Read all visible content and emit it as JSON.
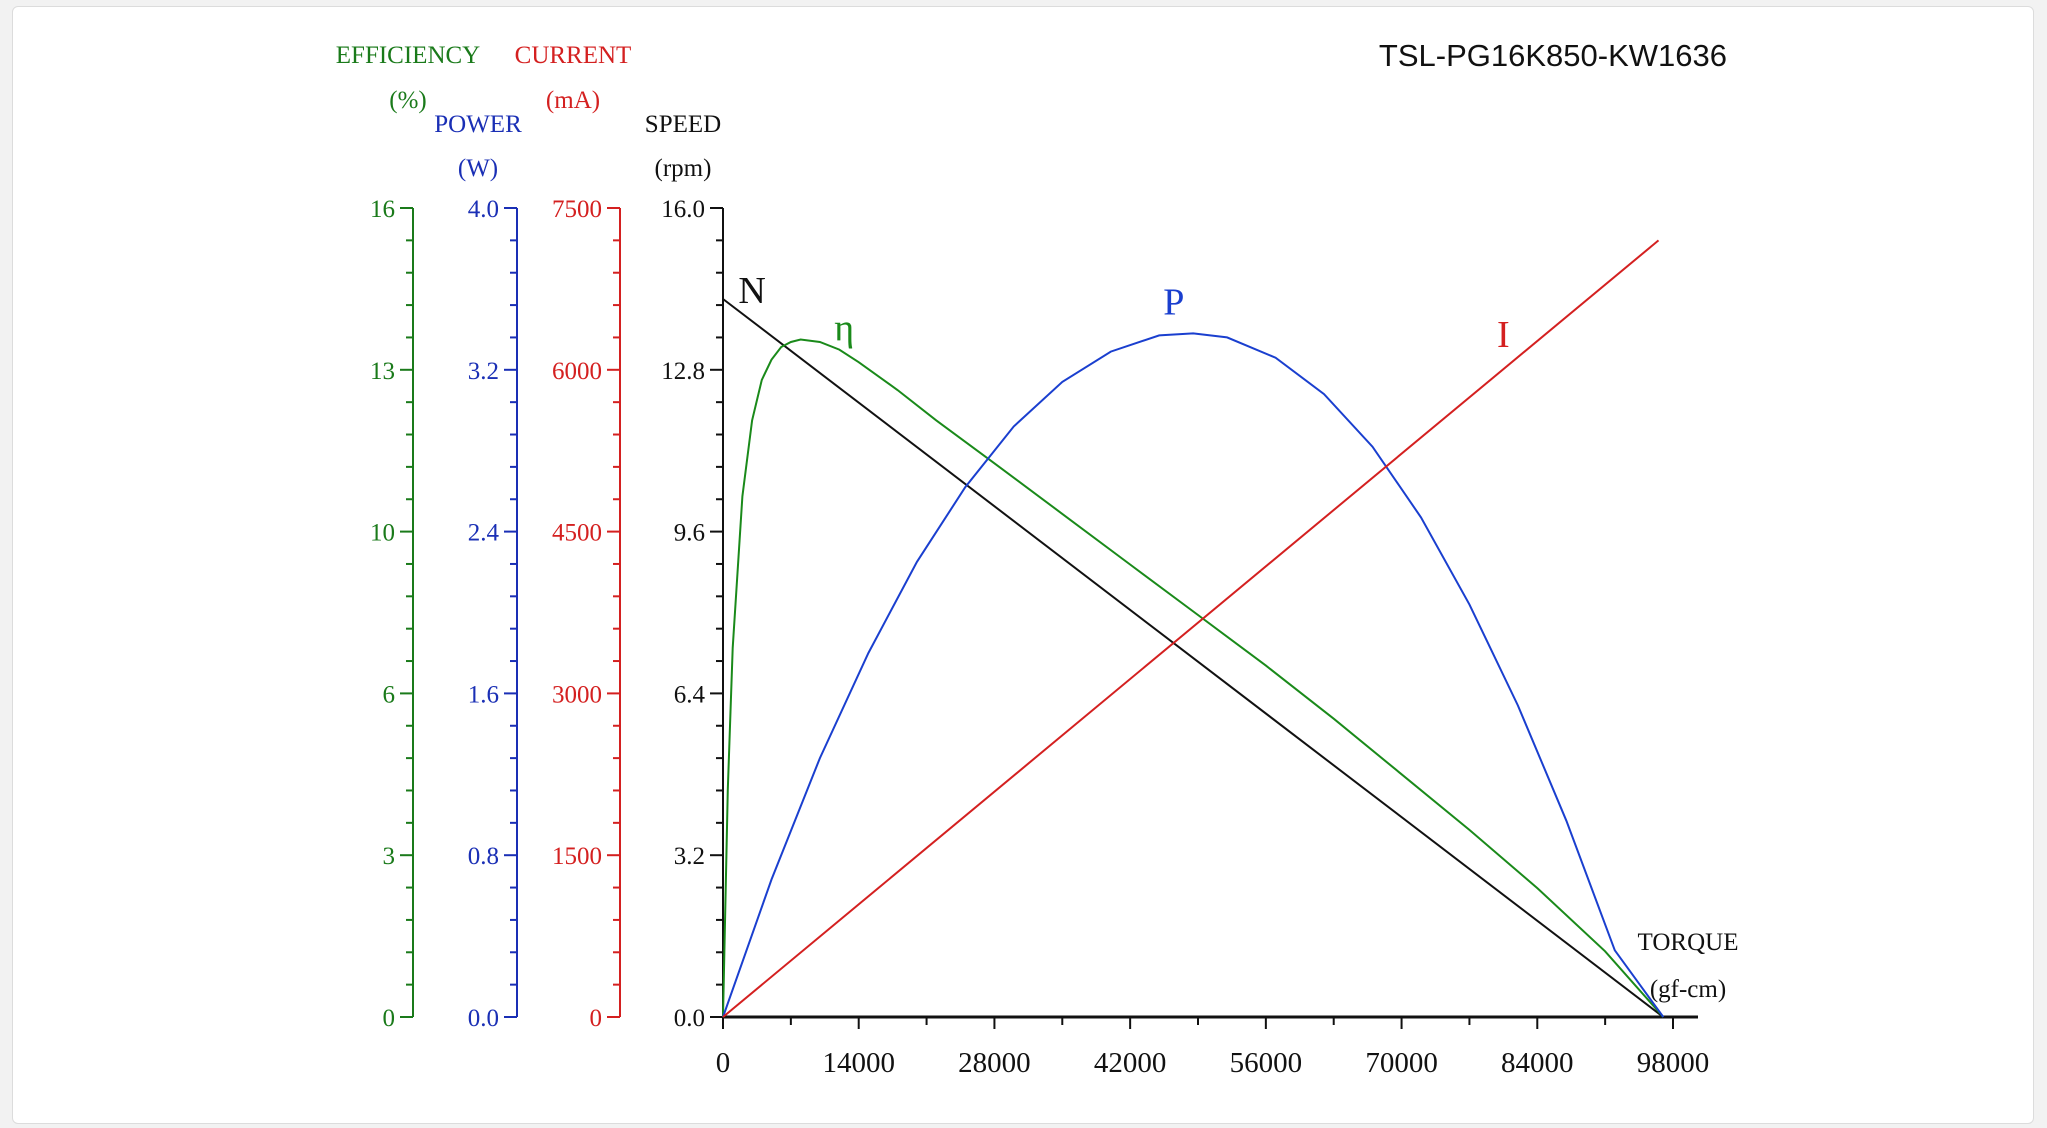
{
  "chart_data": {
    "type": "line",
    "title": "TSL-PG16K850-KW1636",
    "x_axis": {
      "label_line1": "TORQUE",
      "label_line2": "(gf-cm)",
      "range": [
        0,
        98000
      ],
      "ticks": [
        {
          "value": 0,
          "label": "0"
        },
        {
          "value": 14000,
          "label": "14000"
        },
        {
          "value": 28000,
          "label": "28000"
        },
        {
          "value": 42000,
          "label": "42000"
        },
        {
          "value": 56000,
          "label": "56000"
        },
        {
          "value": 70000,
          "label": "70000"
        },
        {
          "value": 84000,
          "label": "84000"
        },
        {
          "value": 98000,
          "label": "98000"
        }
      ]
    },
    "y_axes": [
      {
        "key": "efficiency",
        "label_line1": "EFFICIENCY",
        "label_line2": "(%)",
        "color": "#1a7a1a",
        "range": [
          0,
          16
        ],
        "ticks": [
          {
            "value": 0,
            "label": "0"
          },
          {
            "value": 3.2,
            "label": "3"
          },
          {
            "value": 6.4,
            "label": "6"
          },
          {
            "value": 9.6,
            "label": "10"
          },
          {
            "value": 12.8,
            "label": "13"
          },
          {
            "value": 16,
            "label": "16"
          }
        ]
      },
      {
        "key": "power",
        "label_line1": "POWER",
        "label_line2": "(W)",
        "color": "#1a2fb5",
        "range": [
          0,
          4
        ],
        "ticks": [
          {
            "value": 0,
            "label": "0.0"
          },
          {
            "value": 0.8,
            "label": "0.8"
          },
          {
            "value": 1.6,
            "label": "1.6"
          },
          {
            "value": 2.4,
            "label": "2.4"
          },
          {
            "value": 3.2,
            "label": "3.2"
          },
          {
            "value": 4,
            "label": "4.0"
          }
        ]
      },
      {
        "key": "current",
        "label_line1": "CURRENT",
        "label_line2": "(mA)",
        "color": "#d42020",
        "range": [
          0,
          7500
        ],
        "ticks": [
          {
            "value": 0,
            "label": "0"
          },
          {
            "value": 1500,
            "label": "1500"
          },
          {
            "value": 3000,
            "label": "3000"
          },
          {
            "value": 4500,
            "label": "4500"
          },
          {
            "value": 6000,
            "label": "6000"
          },
          {
            "value": 7500,
            "label": "7500"
          }
        ]
      },
      {
        "key": "speed",
        "label_line1": "SPEED",
        "label_line2": "(rpm)",
        "color": "#111111",
        "range": [
          0,
          16
        ],
        "ticks": [
          {
            "value": 0,
            "label": "0.0"
          },
          {
            "value": 3.2,
            "label": "3.2"
          },
          {
            "value": 6.4,
            "label": "6.4"
          },
          {
            "value": 9.6,
            "label": "9.6"
          },
          {
            "value": 12.8,
            "label": "12.8"
          },
          {
            "value": 16,
            "label": "16.0"
          }
        ]
      }
    ],
    "series": [
      {
        "name": "N",
        "axis": "speed",
        "color": "#111111",
        "label_at": 3000,
        "x": [
          0,
          97000
        ],
        "y": [
          14.2,
          0
        ]
      },
      {
        "name": "η",
        "axis": "efficiency",
        "color": "#1a8a1a",
        "label_at": 12500,
        "x": [
          0,
          500,
          1000,
          2000,
          3000,
          4000,
          5000,
          6000,
          7000,
          8000,
          10000,
          12000,
          14000,
          18000,
          22000,
          28000,
          35000,
          42000,
          49000,
          56000,
          63000,
          70000,
          77000,
          84000,
          91000,
          97000
        ],
        "y": [
          0,
          4.5,
          7.3,
          10.3,
          11.8,
          12.6,
          13.0,
          13.25,
          13.35,
          13.4,
          13.35,
          13.2,
          12.95,
          12.4,
          11.8,
          10.95,
          9.95,
          8.95,
          7.95,
          6.95,
          5.9,
          4.8,
          3.7,
          2.55,
          1.3,
          0
        ]
      },
      {
        "name": "P",
        "axis": "power",
        "color": "#1a3fcf",
        "label_at": 46500,
        "x": [
          0,
          5000,
          10000,
          15000,
          20000,
          25000,
          30000,
          35000,
          40000,
          45000,
          48500,
          52000,
          57000,
          62000,
          67000,
          72000,
          77000,
          82000,
          87000,
          92000,
          97000
        ],
        "y": [
          0,
          0.68,
          1.28,
          1.8,
          2.25,
          2.62,
          2.92,
          3.14,
          3.29,
          3.37,
          3.38,
          3.36,
          3.26,
          3.08,
          2.82,
          2.47,
          2.04,
          1.54,
          0.97,
          0.33,
          0
        ]
      },
      {
        "name": "I",
        "axis": "current",
        "color": "#d42020",
        "label_at": 80500,
        "x": [
          0,
          96500
        ],
        "y": [
          0,
          7200
        ]
      }
    ]
  }
}
